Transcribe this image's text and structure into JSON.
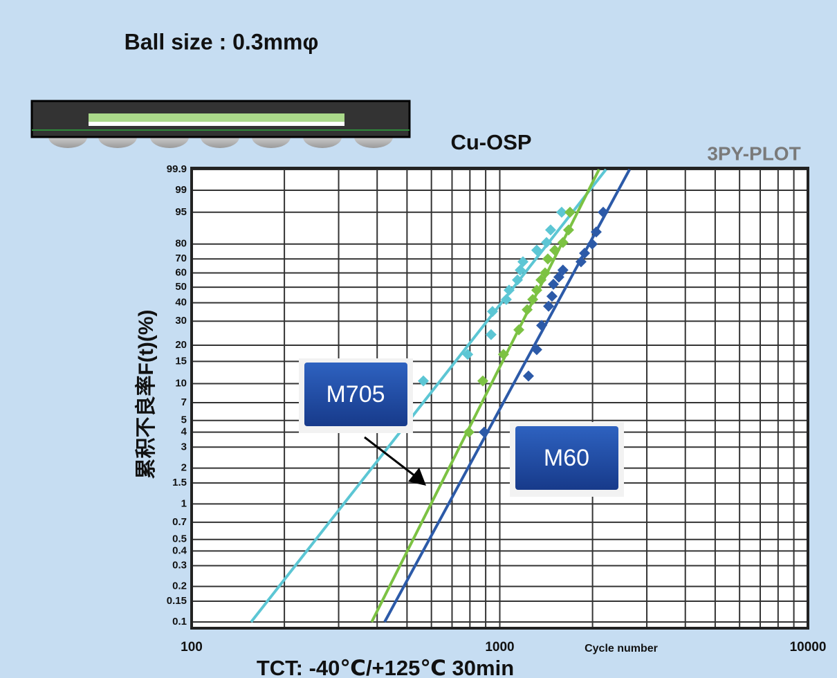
{
  "chart_data": {
    "type": "scatter",
    "header": "Ball size : 0.3mmφ",
    "title": "Cu-OSP",
    "subtitle": "3PY-PLOT",
    "y_label": "累积不良率F(t)(%)",
    "x_label": "Cycle number",
    "footer": "TCT: -40℃/+125℃ 30min",
    "x_scale": "log",
    "y_scale": "weibull",
    "minor_grid": true,
    "xlim": [
      100,
      10000
    ],
    "xticks": [
      100,
      1000,
      10000
    ],
    "ylim": [
      0.1,
      99.9
    ],
    "yticks": [
      99.9,
      99,
      95,
      80,
      70,
      60,
      50,
      40,
      30,
      20,
      15,
      10,
      7,
      5,
      4,
      3,
      2,
      1.5,
      1,
      0.7,
      0.5,
      0.4,
      0.3,
      0.2,
      0.15,
      0.1
    ],
    "series": [
      {
        "color": "#5cc6d4",
        "x": [
          565,
          787,
          937,
          947,
          1050,
          1072,
          1141,
          1165,
          1189,
          1318,
          1418,
          1462,
          1588
        ],
        "values": [
          10.5,
          17,
          24,
          35,
          42,
          48,
          55,
          62,
          68,
          76,
          81,
          88,
          95
        ],
        "fit_x": [
          156,
          2211
        ],
        "fit_y": [
          0.1,
          99.9
        ]
      },
      {
        "name": "M705",
        "color": "#7cc243",
        "x": [
          794,
          881,
          1028,
          1153,
          1227,
          1279,
          1318,
          1361,
          1403,
          1432,
          1508,
          1603,
          1672,
          1690
        ],
        "values": [
          4,
          10.5,
          17,
          26,
          36,
          42,
          48,
          55,
          60,
          70,
          76,
          81,
          88,
          95
        ],
        "fit_x": [
          384,
          2099
        ],
        "fit_y": [
          0.1,
          99.9
        ]
      },
      {
        "name": "M60",
        "color": "#2c5aa8",
        "x": [
          890,
          1239,
          1318,
          1367,
          1440,
          1477,
          1493,
          1555,
          1603,
          1835,
          1884,
          1995,
          2056,
          2166
        ],
        "values": [
          4,
          11.5,
          18.5,
          28,
          38,
          44,
          52,
          57,
          62,
          68,
          74,
          80,
          87,
          95
        ],
        "fit_x": [
          423,
          2637
        ],
        "fit_y": [
          0.1,
          99.9
        ]
      }
    ]
  }
}
